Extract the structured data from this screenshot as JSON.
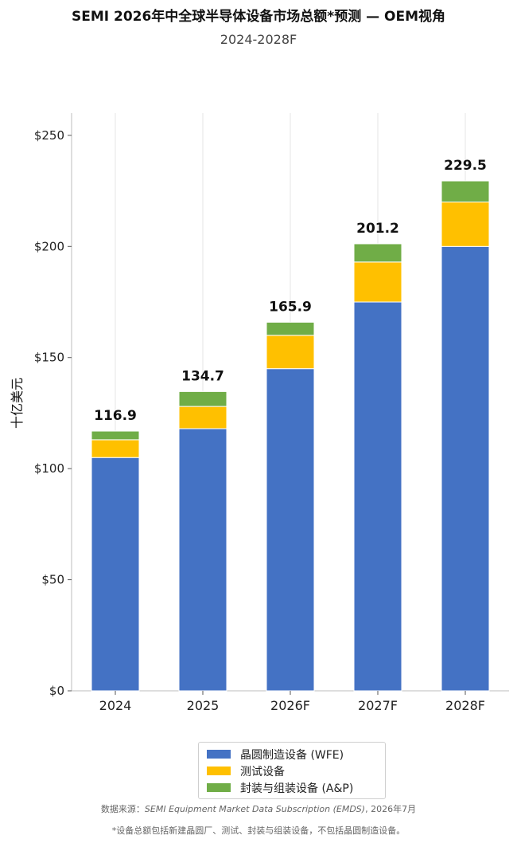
{
  "chart_data": {
    "type": "bar",
    "stacked": true,
    "title": "SEMI 2026年中全球半导体设备市场总额*预测 — OEM视角",
    "subtitle": "2024-2028F",
    "ylabel": "十亿美元",
    "xlabel": "",
    "categories": [
      "2024",
      "2025",
      "2026F",
      "2027F",
      "2028F"
    ],
    "series": [
      {
        "name": "晶圆制造设备 (WFE)",
        "color": "#4472C4",
        "values": [
          105,
          118,
          145,
          175,
          200
        ]
      },
      {
        "name": "测试设备",
        "color": "#FFC000",
        "values": [
          8,
          10,
          15,
          18,
          20
        ]
      },
      {
        "name": "封装与组装设备 (A&P)",
        "color": "#70AD47",
        "values": [
          3.9,
          6.7,
          5.9,
          8.2,
          9.5
        ]
      }
    ],
    "totals": [
      "116.9",
      "134.7",
      "165.9",
      "201.2",
      "229.5"
    ],
    "ylim": [
      0,
      260
    ],
    "yticks": [
      0,
      50,
      100,
      150,
      200,
      250
    ],
    "ytick_labels": [
      "$0",
      "$50",
      "$100",
      "$150",
      "$200",
      "$250"
    ],
    "grid": "vertical",
    "legend_position": "bottom"
  },
  "footer": {
    "source_prefix": "数据来源：",
    "source_name": "SEMI Equipment Market Data Subscription (EMDS)",
    "source_date": ", 2026年7月",
    "note": "*设备总额包括新建晶圆厂、测试、封装与组装设备，不包括晶圆制造设备。"
  }
}
